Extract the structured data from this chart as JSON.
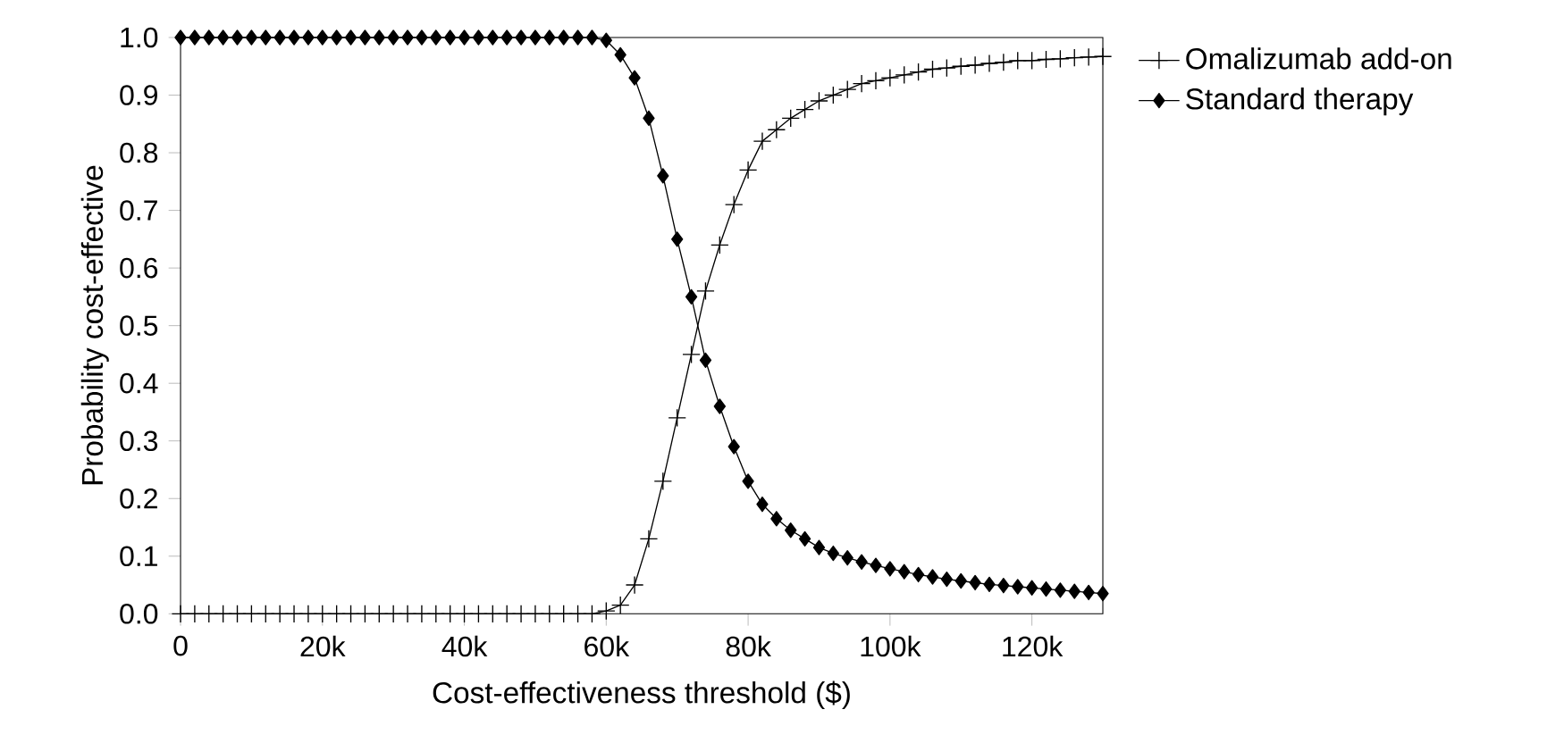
{
  "chart_data": {
    "type": "line",
    "xlabel": "Cost-effectiveness threshold ($)",
    "ylabel": "Probability cost-effective",
    "x": [
      0,
      2000,
      4000,
      6000,
      8000,
      10000,
      12000,
      14000,
      16000,
      18000,
      20000,
      22000,
      24000,
      26000,
      28000,
      30000,
      32000,
      34000,
      36000,
      38000,
      40000,
      42000,
      44000,
      46000,
      48000,
      50000,
      52000,
      54000,
      56000,
      58000,
      60000,
      62000,
      64000,
      66000,
      68000,
      70000,
      72000,
      74000,
      76000,
      78000,
      80000,
      82000,
      84000,
      86000,
      88000,
      90000,
      92000,
      94000,
      96000,
      98000,
      100000,
      102000,
      104000,
      106000,
      108000,
      110000,
      112000,
      114000,
      116000,
      118000,
      120000,
      122000,
      124000,
      126000,
      128000,
      130000
    ],
    "series": [
      {
        "name": "Omalizumab add-on",
        "color": "#000000",
        "marker": "cross",
        "values": [
          0,
          0,
          0,
          0,
          0,
          0,
          0,
          0,
          0,
          0,
          0,
          0,
          0,
          0,
          0,
          0,
          0,
          0,
          0,
          0,
          0,
          0,
          0,
          0,
          0,
          0,
          0,
          0,
          0,
          0,
          0.005,
          0.015,
          0.05,
          0.13,
          0.23,
          0.34,
          0.45,
          0.56,
          0.64,
          0.71,
          0.77,
          0.82,
          0.84,
          0.86,
          0.875,
          0.89,
          0.9,
          0.91,
          0.92,
          0.925,
          0.93,
          0.935,
          0.94,
          0.945,
          0.947,
          0.95,
          0.952,
          0.955,
          0.957,
          0.96,
          0.96,
          0.962,
          0.963,
          0.965,
          0.966,
          0.967
        ]
      },
      {
        "name": "Standard therapy",
        "color": "#000000",
        "marker": "diamond",
        "values": [
          1,
          1,
          1,
          1,
          1,
          1,
          1,
          1,
          1,
          1,
          1,
          1,
          1,
          1,
          1,
          1,
          1,
          1,
          1,
          1,
          1,
          1,
          1,
          1,
          1,
          1,
          1,
          1,
          1,
          1,
          0.995,
          0.97,
          0.93,
          0.86,
          0.76,
          0.65,
          0.55,
          0.44,
          0.36,
          0.29,
          0.23,
          0.19,
          0.165,
          0.145,
          0.13,
          0.115,
          0.105,
          0.097,
          0.09,
          0.084,
          0.078,
          0.073,
          0.068,
          0.064,
          0.06,
          0.057,
          0.054,
          0.051,
          0.049,
          0.047,
          0.045,
          0.043,
          0.041,
          0.039,
          0.037,
          0.035
        ]
      }
    ],
    "xlim": [
      0,
      130000
    ],
    "ylim": [
      0,
      1
    ],
    "xticks": [
      0,
      {
        "value": 20000,
        "label": "20k"
      },
      {
        "value": 40000,
        "label": "40k"
      },
      {
        "value": 60000,
        "label": "60k"
      },
      {
        "value": 80000,
        "label": "80k"
      },
      {
        "value": 100000,
        "label": "100k"
      },
      {
        "value": 120000,
        "label": "120k"
      }
    ],
    "yticks": [
      {
        "value": 0,
        "label": "0.0"
      },
      {
        "value": 0.1,
        "label": "0.1"
      },
      {
        "value": 0.2,
        "label": "0.2"
      },
      {
        "value": 0.3,
        "label": "0.3"
      },
      {
        "value": 0.4,
        "label": "0.4"
      },
      {
        "value": 0.5,
        "label": "0.5"
      },
      {
        "value": 0.6,
        "label": "0.6"
      },
      {
        "value": 0.7,
        "label": "0.7"
      },
      {
        "value": 0.8,
        "label": "0.8"
      },
      {
        "value": 0.9,
        "label": "0.9"
      },
      {
        "value": 1,
        "label": "1.0"
      }
    ],
    "grid": false,
    "legend": "top right",
    "line_style": "solid"
  }
}
